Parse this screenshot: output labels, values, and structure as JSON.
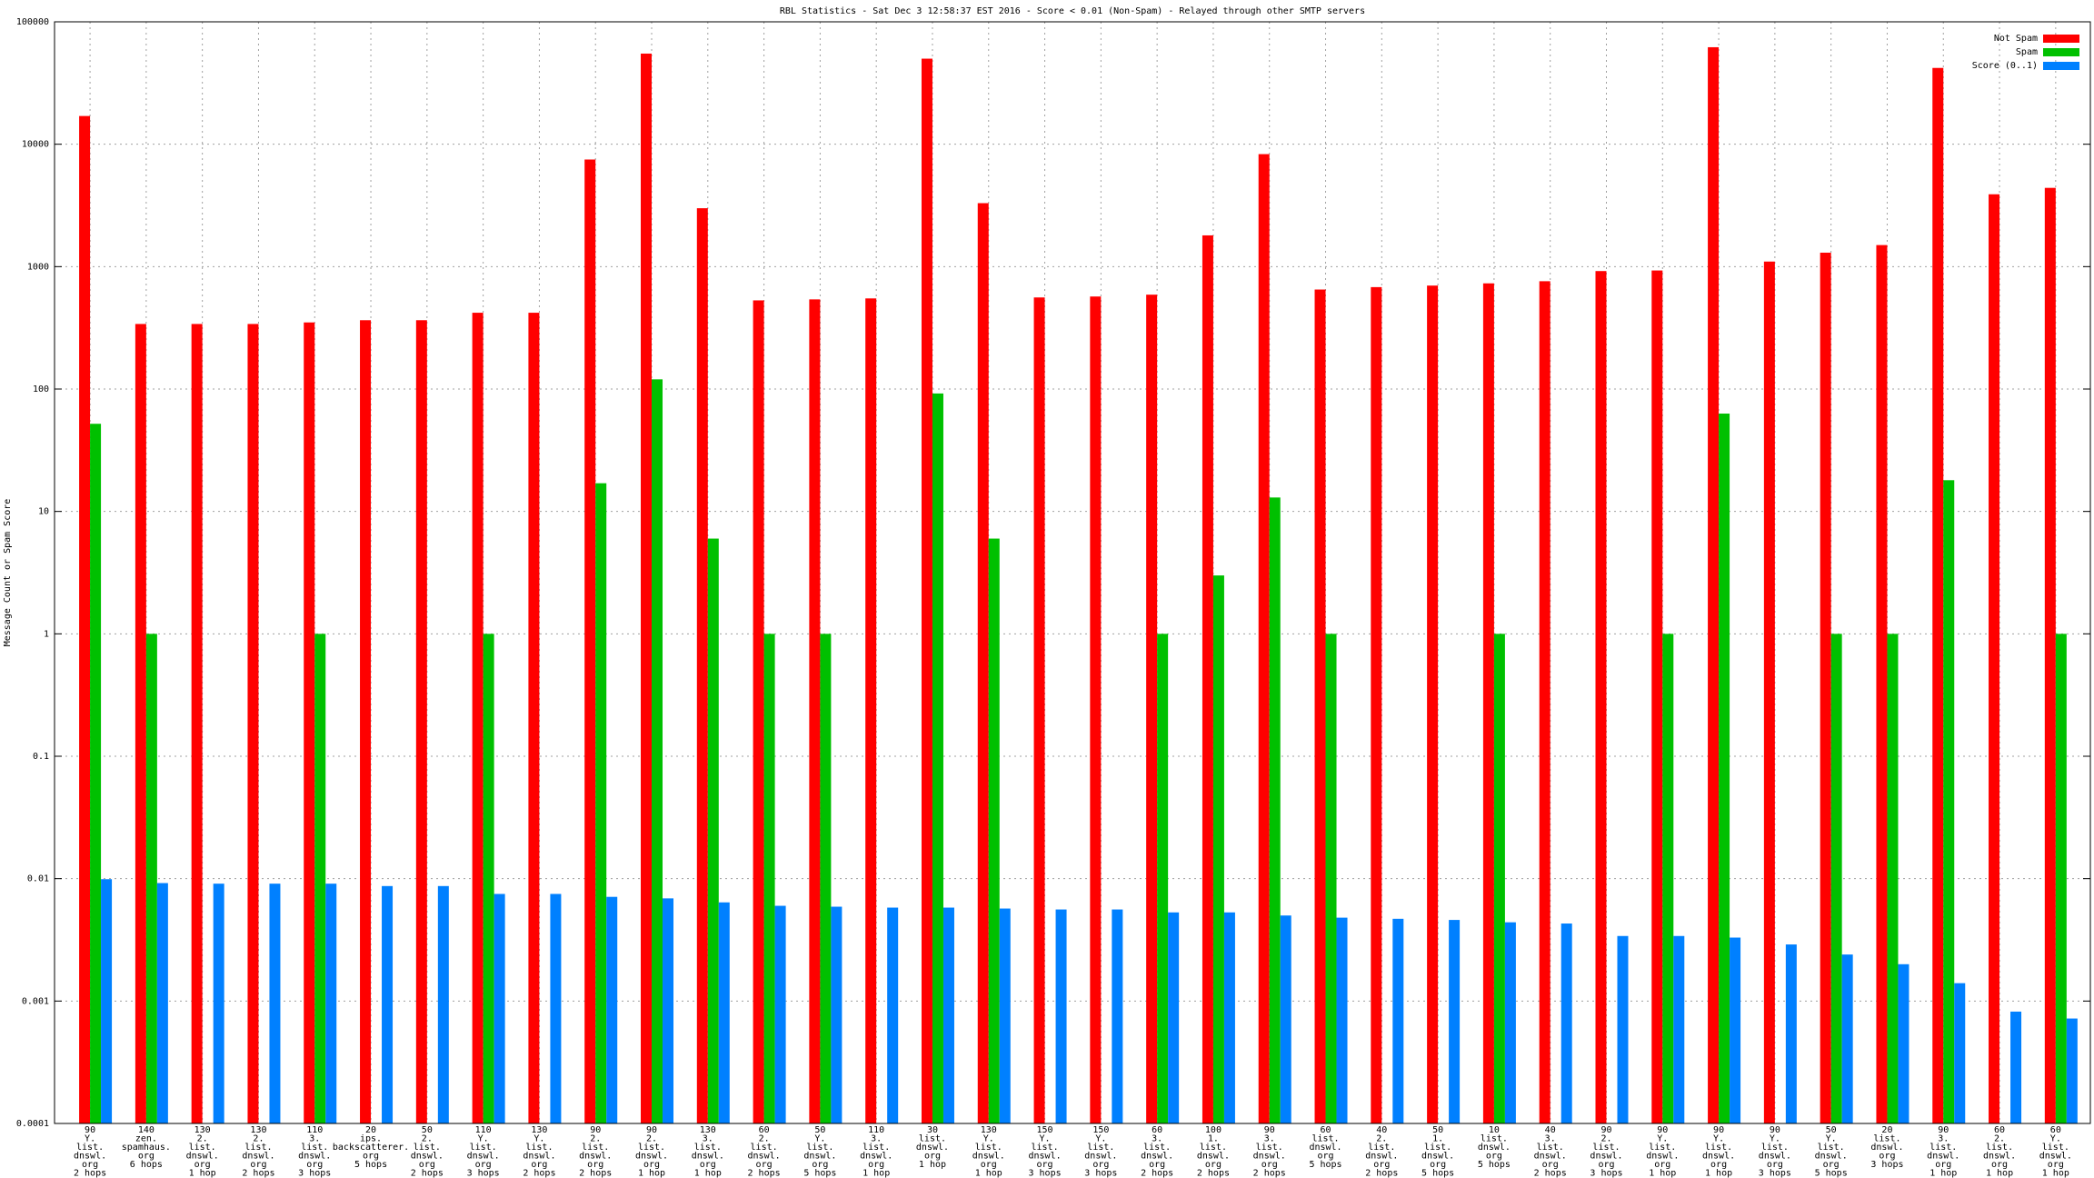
{
  "chart_data": {
    "type": "bar",
    "title": "RBL Statistics - Sat Dec  3 12:58:37 EST 2016 - Score < 0.01 (Non-Spam) - Relayed through other SMTP servers",
    "y_label": "Message Count or Spam Score",
    "log_scale": true,
    "grid": true,
    "legend": "top-right",
    "categories": [
      "90\nY.\nlist.\ndnswl.\norg\n2 hops",
      "140\nzen.\nspamhaus.\norg\n6 hops",
      "130\n2.\nlist.\ndnswl.\norg\n1 hop",
      "130\n2.\nlist.\ndnswl.\norg\n2 hops",
      "110\n3.\nlist.\ndnswl.\norg\n3 hops",
      "20\nips.\nbackscatterer.\norg\n5 hops",
      "50\n2.\nlist.\ndnswl.\norg\n2 hops",
      "110\nY.\nlist.\ndnswl.\norg\n3 hops",
      "130\nY.\nlist.\ndnswl.\norg\n2 hops",
      "90\n2.\nlist.\ndnswl.\norg\n2 hops",
      "90\n2.\nlist.\ndnswl.\norg\n1 hop",
      "130\n3.\nlist.\ndnswl.\norg\n1 hop",
      "60\n2.\nlist.\ndnswl.\norg\n2 hops",
      "50\nY.\nlist.\ndnswl.\norg\n5 hops",
      "110\n3.\nlist.\ndnswl.\norg\n1 hop",
      "30\nlist.\ndnswl.\norg\n1 hop",
      "130\nY.\nlist.\ndnswl.\norg\n1 hop",
      "150\nY.\nlist.\ndnswl.\norg\n3 hops",
      "150\nY.\nlist.\ndnswl.\norg\n3 hops",
      "60\n3.\nlist.\ndnswl.\norg\n2 hops",
      "100\n1.\nlist.\ndnswl.\norg\n2 hops",
      "90\n3.\nlist.\ndnswl.\norg\n2 hops",
      "60\nlist.\ndnswl.\norg\n5 hops",
      "40\n2.\nlist.\ndnswl.\norg\n2 hops",
      "50\n1.\nlist.\ndnswl.\norg\n5 hops",
      "10\nlist.\ndnswl.\norg\n5 hops",
      "40\n3.\nlist.\ndnswl.\norg\n2 hops",
      "90\n2.\nlist.\ndnswl.\norg\n3 hops",
      "90\nY.\nlist.\ndnswl.\norg\n1 hop",
      "90\nY.\nlist.\ndnswl.\norg\n1 hop",
      "90\nY.\nlist.\ndnswl.\norg\n3 hops",
      "50\nY.\nlist.\ndnswl.\norg\n5 hops",
      "20\nlist.\ndnswl.\norg\n3 hops",
      "90\n3.\nlist.\ndnswl.\norg\n1 hop",
      "60\n2.\nlist.\ndnswl.\norg\n1 hop",
      "60\nY.\nlist.\ndnswl.\norg\n1 hop"
    ],
    "series": [
      {
        "name": "Not Spam",
        "color": "#ff0000",
        "values": [
          17000,
          340,
          340,
          340,
          350,
          365,
          365,
          420,
          420,
          7500,
          55000,
          3000,
          530,
          540,
          550,
          50000,
          3300,
          560,
          570,
          590,
          1800,
          8300,
          650,
          680,
          700,
          730,
          760,
          920,
          930,
          62000,
          1100,
          1300,
          1500,
          42000,
          3900,
          4400
        ]
      },
      {
        "name": "Spam",
        "color": "#00c000",
        "values": [
          52,
          1,
          null,
          null,
          1,
          null,
          null,
          1,
          null,
          17,
          120,
          6,
          1,
          1,
          null,
          92,
          6,
          null,
          null,
          1,
          3,
          13,
          1,
          null,
          null,
          1,
          null,
          null,
          1,
          63,
          null,
          1,
          1,
          18,
          null,
          1
        ]
      },
      {
        "name": "Score (0..1)",
        "color": "#0080ff",
        "values": [
          0.0099,
          0.0092,
          0.0091,
          0.0091,
          0.0091,
          0.0087,
          0.0087,
          0.0075,
          0.0075,
          0.0071,
          0.0069,
          0.0064,
          0.006,
          0.0059,
          0.0058,
          0.0058,
          0.0057,
          0.0056,
          0.0056,
          0.0053,
          0.0053,
          0.005,
          0.0048,
          0.0047,
          0.0046,
          0.0044,
          0.0043,
          0.0034,
          0.0034,
          0.0033,
          0.0029,
          0.0024,
          0.002,
          0.0014,
          0.00082,
          0.00072
        ]
      }
    ],
    "ylim": [
      0.0001,
      100000
    ],
    "yticks": [
      0.0001,
      0.001,
      0.01,
      0.1,
      1,
      10,
      100,
      1000,
      10000,
      100000
    ]
  }
}
